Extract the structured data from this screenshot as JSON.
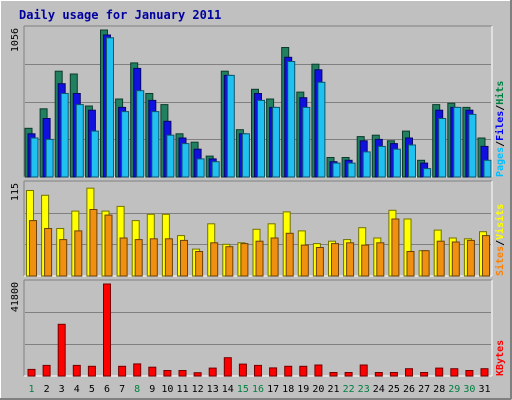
{
  "chart_data": {
    "type": "bar",
    "title": "Daily usage for January 2011",
    "categories": [
      "1",
      "2",
      "3",
      "4",
      "5",
      "6",
      "7",
      "8",
      "9",
      "10",
      "11",
      "12",
      "13",
      "14",
      "15",
      "16",
      "17",
      "18",
      "19",
      "20",
      "21",
      "22",
      "23",
      "24",
      "25",
      "26",
      "27",
      "28",
      "29",
      "30",
      "31"
    ],
    "weekend_days": [
      1,
      8,
      15,
      16,
      22,
      23,
      29,
      30
    ],
    "panels": [
      {
        "name": "pages-files-hits",
        "ymax_label": "1056",
        "ymax": 1056,
        "legend": [
          {
            "text": "Pages",
            "color": "#00c0ff"
          },
          {
            "text": "Files",
            "color": "#0000ff"
          },
          {
            "text": "Hits",
            "color": "#008040"
          }
        ],
        "series": [
          {
            "name": "Hits",
            "color": "#208060",
            "values": [
              350,
              490,
              760,
              740,
              510,
              1056,
              560,
              820,
              600,
              520,
              310,
              250,
              150,
              760,
              340,
              630,
              560,
              930,
              610,
              810,
              140,
              140,
              290,
              300,
              260,
              330,
              120,
              520,
              530,
              500,
              280
            ]
          },
          {
            "name": "Files",
            "color": "#1010e0",
            "values": [
              310,
              420,
              670,
              600,
              480,
              1020,
              500,
              780,
              550,
              400,
              280,
              200,
              130,
              730,
              310,
              600,
              500,
              860,
              570,
              770,
              110,
              120,
              260,
              270,
              240,
              280,
              100,
              480,
              500,
              480,
              220
            ]
          },
          {
            "name": "Pages",
            "color": "#20c0f0",
            "values": [
              280,
              270,
              600,
              520,
              330,
              1000,
              470,
              620,
              470,
              300,
              240,
              130,
              110,
              730,
              310,
              550,
              500,
              830,
              500,
              680,
              100,
              100,
              180,
              220,
              200,
              230,
              60,
              420,
              500,
              450,
              120
            ]
          }
        ]
      },
      {
        "name": "visits-sites",
        "ymax_label": "115",
        "ymax": 115,
        "legend": [
          {
            "text": "Sites",
            "color": "#ff8000"
          },
          {
            "text": "Visits",
            "color": "#ffff00"
          }
        ],
        "series": [
          {
            "name": "Visits",
            "color": "#ffff00",
            "values": [
              108,
              102,
              60,
              82,
              111,
              82,
              88,
              70,
              78,
              78,
              51,
              34,
              66,
              40,
              42,
              59,
              66,
              81,
              57,
              41,
              44,
              46,
              61,
              48,
              83,
              72,
              32,
              58,
              48,
              47,
              56
            ]
          },
          {
            "name": "Sites",
            "color": "#f09010",
            "values": [
              70,
              60,
              46,
              57,
              84,
              77,
              48,
              46,
              47,
              47,
              45,
              31,
              42,
              37,
              41,
              44,
              48,
              54,
              39,
              36,
              41,
              42,
              39,
              42,
              72,
              31,
              32,
              44,
              43,
              45,
              51
            ]
          }
        ]
      },
      {
        "name": "kbytes",
        "ymax_label": "41800",
        "ymax": 41800,
        "legend": [
          {
            "text": "KBytes",
            "color": "#ff0000"
          }
        ],
        "series": [
          {
            "name": "KBytes",
            "color": "#ff0000",
            "values": [
              3000,
              4800,
              23500,
              4800,
              4400,
              41800,
              4400,
              5500,
              4000,
              2500,
              2500,
              1500,
              3600,
              8300,
              5400,
              4800,
              3700,
              4400,
              4400,
              5000,
              1600,
              1600,
              5000,
              1600,
              1600,
              3300,
              1600,
              3600,
              3300,
              2500,
              3300
            ]
          }
        ]
      }
    ]
  },
  "colors": {
    "background": "#c0c0c0",
    "title": "#0000a0",
    "weekday_label": "#000000",
    "weekend_label": "#008040",
    "separator": "#808080"
  }
}
